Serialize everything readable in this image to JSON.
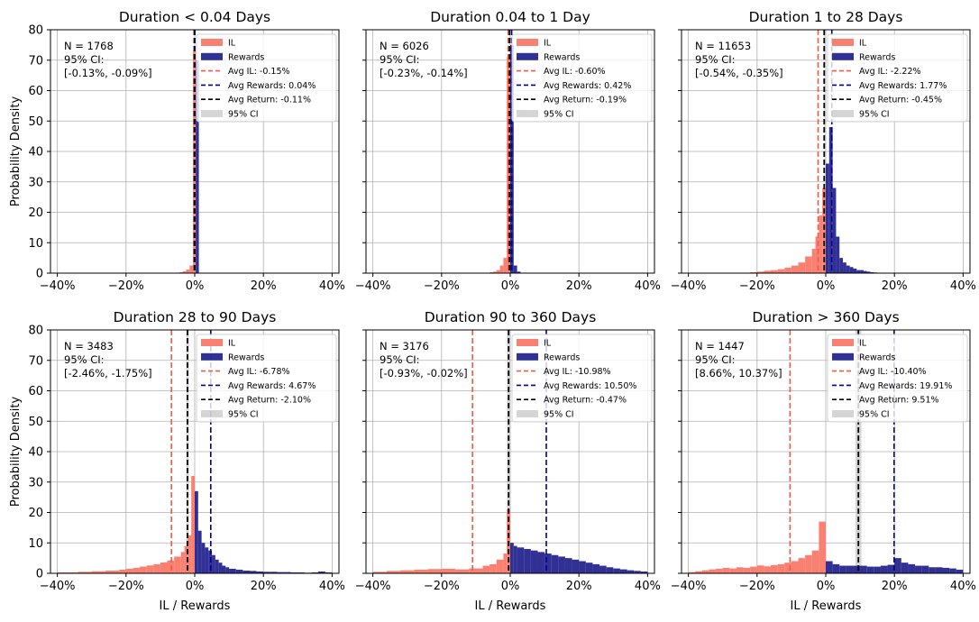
{
  "figure": {
    "ylabel": "Probability Density",
    "xlabel": "IL / Rewards",
    "legend_labels": {
      "il": "IL",
      "rewards": "Rewards",
      "ci": "95% CI"
    },
    "colors": {
      "il": "#fa8072",
      "rewards": "#1e1e8c",
      "avg_il": "#f05a46",
      "avg_rewards": "#00008b",
      "avg_return": "#000000",
      "ci": "#bebebe",
      "grid": "#b0b0b0"
    }
  },
  "chart_data": [
    {
      "type": "histogram",
      "title": "Duration < 0.04 Days",
      "n_text": "N = 1768",
      "ci_label": "95% CI:",
      "ci_text": "[-0.13%, -0.09%]",
      "ci_range": [
        -0.13,
        -0.09
      ],
      "xlim": [
        -42,
        42
      ],
      "ylim": [
        0,
        80
      ],
      "xticks": [
        -40,
        -20,
        0,
        20,
        40
      ],
      "xtick_labels": [
        "−40%",
        "−20%",
        "0%",
        "20%",
        "40%"
      ],
      "yticks": [
        0,
        10,
        20,
        30,
        40,
        50,
        60,
        70,
        80
      ],
      "ytick_labels": [
        "0",
        "10",
        "20",
        "30",
        "40",
        "50",
        "60",
        "70",
        "80"
      ],
      "show_ylabel": true,
      "show_ytick_labels": true,
      "show_xlabel": false,
      "avg_il": -0.15,
      "avg_rewards": 0.04,
      "avg_return": -0.11,
      "legend_avg": [
        "Avg IL: -0.15%",
        "Avg Rewards: 0.04%",
        "Avg Return: -0.11%"
      ],
      "il_bins": [
        [
          -4.5,
          -3.5,
          0.3
        ],
        [
          -3.5,
          -2.5,
          0.6
        ],
        [
          -2.5,
          -1.5,
          1.2
        ],
        [
          -1.5,
          -0.5,
          2.5
        ],
        [
          -0.5,
          0.3,
          73
        ]
      ],
      "rewards_bins": [
        [
          0.3,
          1.2,
          70
        ]
      ]
    },
    {
      "type": "histogram",
      "title": "Duration 0.04 to 1 Day",
      "n_text": "N = 6026",
      "ci_label": "95% CI:",
      "ci_text": "[-0.23%, -0.14%]",
      "ci_range": [
        -0.23,
        -0.14
      ],
      "xlim": [
        -42,
        42
      ],
      "ylim": [
        0,
        80
      ],
      "xticks": [
        -40,
        -20,
        0,
        20,
        40
      ],
      "xtick_labels": [
        "−40%",
        "−20%",
        "0%",
        "20%",
        "40%"
      ],
      "yticks": [
        0,
        10,
        20,
        30,
        40,
        50,
        60,
        70,
        80
      ],
      "ytick_labels": [
        "0",
        "10",
        "20",
        "30",
        "40",
        "50",
        "60",
        "70",
        "80"
      ],
      "show_ylabel": false,
      "show_ytick_labels": false,
      "show_xlabel": false,
      "avg_il": -0.6,
      "avg_rewards": 0.42,
      "avg_return": -0.19,
      "legend_avg": [
        "Avg IL: -0.60%",
        "Avg Rewards: 0.42%",
        "Avg Return: -0.19%"
      ],
      "il_bins": [
        [
          -6,
          -5,
          0.3
        ],
        [
          -5,
          -4,
          0.5
        ],
        [
          -4,
          -3,
          1
        ],
        [
          -3,
          -2,
          2.5
        ],
        [
          -2,
          -1,
          5
        ],
        [
          -1,
          0,
          71
        ]
      ],
      "rewards_bins": [
        [
          0,
          1,
          75
        ],
        [
          1,
          2,
          2.5
        ],
        [
          2,
          3,
          0.5
        ]
      ]
    },
    {
      "type": "histogram",
      "title": "Duration 1 to 28 Days",
      "n_text": "N = 11653",
      "ci_label": "95% CI:",
      "ci_text": "[-0.54%, -0.35%]",
      "ci_range": [
        -0.54,
        -0.35
      ],
      "xlim": [
        -42,
        42
      ],
      "ylim": [
        0,
        80
      ],
      "xticks": [
        -40,
        -20,
        0,
        20,
        40
      ],
      "xtick_labels": [
        "−40%",
        "−20%",
        "0%",
        "20%",
        "40%"
      ],
      "yticks": [
        0,
        10,
        20,
        30,
        40,
        50,
        60,
        70,
        80
      ],
      "ytick_labels": [
        "0",
        "10",
        "20",
        "30",
        "40",
        "50",
        "60",
        "70",
        "80"
      ],
      "show_ylabel": false,
      "show_ytick_labels": false,
      "show_xlabel": false,
      "avg_il": -2.22,
      "avg_rewards": 1.77,
      "avg_return": -0.45,
      "legend_avg": [
        "Avg IL: -2.22%",
        "Avg Rewards: 1.77%",
        "Avg Return: -0.45%"
      ],
      "il_bins": [
        [
          -22,
          -20,
          0.3
        ],
        [
          -20,
          -18,
          0.5
        ],
        [
          -18,
          -16,
          0.8
        ],
        [
          -16,
          -14,
          1
        ],
        [
          -14,
          -12,
          1.3
        ],
        [
          -12,
          -10,
          1.8
        ],
        [
          -10,
          -8,
          2.5
        ],
        [
          -8,
          -6,
          3.5
        ],
        [
          -6,
          -4,
          5.5
        ],
        [
          -4,
          -3,
          8
        ],
        [
          -3,
          -2,
          12
        ],
        [
          -2,
          -1,
          19
        ],
        [
          -1,
          0,
          28
        ]
      ],
      "rewards_bins": [
        [
          0,
          1,
          36
        ],
        [
          1,
          2,
          48
        ],
        [
          2,
          3,
          28
        ],
        [
          3,
          4,
          12
        ],
        [
          4,
          5,
          5
        ],
        [
          5,
          6,
          3.5
        ],
        [
          6,
          7,
          2.5
        ],
        [
          7,
          8,
          2
        ],
        [
          8,
          9,
          1.5
        ],
        [
          9,
          10,
          1
        ],
        [
          10,
          11,
          1
        ],
        [
          11,
          12,
          0.7
        ],
        [
          12,
          13,
          0.5
        ],
        [
          13,
          14,
          0.3
        ],
        [
          14,
          15,
          0.2
        ]
      ]
    },
    {
      "type": "histogram",
      "title": "Duration 28 to 90 Days",
      "n_text": "N = 3483",
      "ci_label": "95% CI:",
      "ci_text": "[-2.46%, -1.75%]",
      "ci_range": [
        -2.46,
        -1.75
      ],
      "xlim": [
        -42,
        42
      ],
      "ylim": [
        0,
        80
      ],
      "xticks": [
        -40,
        -20,
        0,
        20,
        40
      ],
      "xtick_labels": [
        "−40%",
        "−20%",
        "0%",
        "20%",
        "40%"
      ],
      "yticks": [
        0,
        10,
        20,
        30,
        40,
        50,
        60,
        70,
        80
      ],
      "ytick_labels": [
        "0",
        "10",
        "20",
        "30",
        "40",
        "50",
        "60",
        "70",
        "80"
      ],
      "show_ylabel": true,
      "show_ytick_labels": true,
      "show_xlabel": true,
      "avg_il": -6.78,
      "avg_rewards": 4.67,
      "avg_return": -2.1,
      "legend_avg": [
        "Avg IL: -6.78%",
        "Avg Rewards: 4.67%",
        "Avg Return: -2.10%"
      ],
      "il_bins": [
        [
          -40,
          -34,
          0.3
        ],
        [
          -34,
          -30,
          0.5
        ],
        [
          -30,
          -26,
          0.7
        ],
        [
          -26,
          -22,
          0.9
        ],
        [
          -22,
          -20,
          1.2
        ],
        [
          -20,
          -18,
          1.5
        ],
        [
          -18,
          -16,
          1.8
        ],
        [
          -16,
          -14,
          2.2
        ],
        [
          -14,
          -12,
          2.6
        ],
        [
          -12,
          -10,
          3
        ],
        [
          -10,
          -8,
          3.6
        ],
        [
          -8,
          -6,
          4.2
        ],
        [
          -6,
          -4,
          5.5
        ],
        [
          -4,
          -3,
          7
        ],
        [
          -3,
          -2,
          9
        ],
        [
          -2,
          -1,
          12.5
        ],
        [
          -1,
          0,
          32
        ]
      ],
      "rewards_bins": [
        [
          0,
          1,
          27
        ],
        [
          1,
          2,
          14
        ],
        [
          2,
          3,
          10
        ],
        [
          3,
          4,
          8.5
        ],
        [
          4,
          5,
          7.5
        ],
        [
          5,
          6,
          6
        ],
        [
          6,
          7,
          4.5
        ],
        [
          7,
          8,
          3.5
        ],
        [
          8,
          9,
          2.5
        ],
        [
          9,
          10,
          2
        ],
        [
          10,
          12,
          1.5
        ],
        [
          12,
          14,
          1.2
        ],
        [
          14,
          16,
          0.9
        ],
        [
          16,
          18,
          0.8
        ],
        [
          18,
          20,
          0.6
        ],
        [
          20,
          22,
          0.5
        ],
        [
          22,
          24,
          0.5
        ],
        [
          24,
          26,
          0.4
        ],
        [
          26,
          28,
          0.4
        ],
        [
          28,
          30,
          0.3
        ],
        [
          30,
          32,
          0.3
        ],
        [
          32,
          34,
          0.2
        ],
        [
          34,
          36,
          0.3
        ],
        [
          36,
          38,
          0.6
        ],
        [
          38,
          40,
          0.3
        ]
      ]
    },
    {
      "type": "histogram",
      "title": "Duration 90 to 360 Days",
      "n_text": "N = 3176",
      "ci_label": "95% CI:",
      "ci_text": "[-0.93%, -0.02%]",
      "ci_range": [
        -0.93,
        -0.02
      ],
      "xlim": [
        -42,
        42
      ],
      "ylim": [
        0,
        80
      ],
      "xticks": [
        -40,
        -20,
        0,
        20,
        40
      ],
      "xtick_labels": [
        "−40%",
        "−20%",
        "0%",
        "20%",
        "40%"
      ],
      "yticks": [
        0,
        10,
        20,
        30,
        40,
        50,
        60,
        70,
        80
      ],
      "ytick_labels": [
        "0",
        "10",
        "20",
        "30",
        "40",
        "50",
        "60",
        "70",
        "80"
      ],
      "show_ylabel": false,
      "show_ytick_labels": false,
      "show_xlabel": true,
      "avg_il": -10.98,
      "avg_rewards": 10.5,
      "avg_return": -0.47,
      "legend_avg": [
        "Avg IL: -10.98%",
        "Avg Rewards: 10.50%",
        "Avg Return: -0.47%"
      ],
      "il_bins": [
        [
          -40,
          -36,
          0.5
        ],
        [
          -36,
          -32,
          0.8
        ],
        [
          -32,
          -28,
          1
        ],
        [
          -28,
          -24,
          1.2
        ],
        [
          -24,
          -20,
          1.4
        ],
        [
          -20,
          -16,
          1.5
        ],
        [
          -16,
          -12,
          1.3
        ],
        [
          -12,
          -8,
          1.6
        ],
        [
          -8,
          -6,
          2.5
        ],
        [
          -6,
          -4,
          3
        ],
        [
          -4,
          -2,
          4.5
        ],
        [
          -2,
          -1,
          6.5
        ],
        [
          -1,
          0,
          21
        ]
      ],
      "rewards_bins": [
        [
          0,
          1,
          10
        ],
        [
          1,
          2,
          9
        ],
        [
          2,
          4,
          8.5
        ],
        [
          4,
          6,
          8
        ],
        [
          6,
          8,
          7.5
        ],
        [
          8,
          10,
          7
        ],
        [
          10,
          12,
          6.5
        ],
        [
          12,
          14,
          6
        ],
        [
          14,
          16,
          5.5
        ],
        [
          16,
          18,
          5
        ],
        [
          18,
          20,
          4.5
        ],
        [
          20,
          22,
          4
        ],
        [
          22,
          24,
          3.5
        ],
        [
          24,
          26,
          3
        ],
        [
          26,
          28,
          2.5
        ],
        [
          28,
          30,
          2
        ],
        [
          30,
          32,
          1.6
        ],
        [
          32,
          34,
          1.3
        ],
        [
          34,
          36,
          1
        ],
        [
          36,
          38,
          0.8
        ],
        [
          38,
          40,
          0.6
        ]
      ]
    },
    {
      "type": "histogram",
      "title": "Duration > 360 Days",
      "n_text": "N = 1447",
      "ci_label": "95% CI:",
      "ci_text": "[8.66%, 10.37%]",
      "ci_range": [
        8.66,
        10.37
      ],
      "xlim": [
        -42,
        42
      ],
      "ylim": [
        0,
        80
      ],
      "xticks": [
        -40,
        -20,
        0,
        20,
        40
      ],
      "xtick_labels": [
        "−40%",
        "−20%",
        "0%",
        "20%",
        "40%"
      ],
      "yticks": [
        0,
        10,
        20,
        30,
        40,
        50,
        60,
        70,
        80
      ],
      "ytick_labels": [
        "0",
        "10",
        "20",
        "30",
        "40",
        "50",
        "60",
        "70",
        "80"
      ],
      "show_ylabel": false,
      "show_ytick_labels": false,
      "show_xlabel": true,
      "avg_il": -10.4,
      "avg_rewards": 19.91,
      "avg_return": 9.51,
      "legend_avg": [
        "Avg IL: -10.40%",
        "Avg Rewards: 19.91%",
        "Avg Return: 9.51%"
      ],
      "il_bins": [
        [
          -40,
          -38,
          0.4
        ],
        [
          -38,
          -36,
          0.7
        ],
        [
          -36,
          -34,
          1
        ],
        [
          -34,
          -32,
          1.3
        ],
        [
          -32,
          -30,
          1.5
        ],
        [
          -30,
          -28,
          1.8
        ],
        [
          -28,
          -26,
          1.6
        ],
        [
          -26,
          -24,
          2
        ],
        [
          -24,
          -22,
          1.8
        ],
        [
          -22,
          -20,
          2.2
        ],
        [
          -20,
          -18,
          2.6
        ],
        [
          -18,
          -16,
          2.3
        ],
        [
          -16,
          -14,
          2.7
        ],
        [
          -14,
          -12,
          3
        ],
        [
          -12,
          -10,
          3.5
        ],
        [
          -10,
          -8,
          4
        ],
        [
          -8,
          -6,
          5
        ],
        [
          -6,
          -4,
          6
        ],
        [
          -4,
          -2,
          7.5
        ],
        [
          -2,
          0,
          17
        ]
      ],
      "rewards_bins": [
        [
          0,
          2,
          4
        ],
        [
          2,
          4,
          3
        ],
        [
          4,
          6,
          2.5
        ],
        [
          6,
          8,
          2.5
        ],
        [
          8,
          10,
          2.5
        ],
        [
          10,
          12,
          2.5
        ],
        [
          12,
          14,
          2.2
        ],
        [
          14,
          16,
          2.2
        ],
        [
          16,
          18,
          2.5
        ],
        [
          18,
          20,
          2.8
        ],
        [
          20,
          22,
          5
        ],
        [
          22,
          24,
          3.5
        ],
        [
          24,
          26,
          3
        ],
        [
          26,
          28,
          2.5
        ],
        [
          28,
          30,
          2.5
        ],
        [
          30,
          32,
          2
        ],
        [
          32,
          34,
          2
        ],
        [
          34,
          36,
          1.8
        ],
        [
          36,
          38,
          1.6
        ],
        [
          38,
          40,
          1.2
        ]
      ]
    }
  ]
}
